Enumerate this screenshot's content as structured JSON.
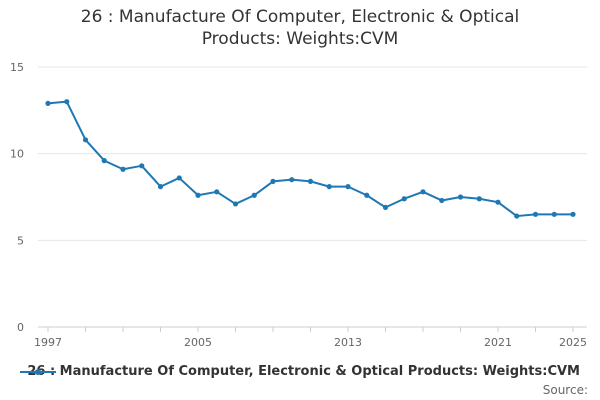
{
  "chart_data": {
    "type": "line",
    "title_lines": [
      "26 : Manufacture Of Computer, Electronic & Optical",
      "Products: Weights:CVM"
    ],
    "x": [
      1997,
      1998,
      1999,
      2000,
      2001,
      2002,
      2003,
      2004,
      2005,
      2006,
      2007,
      2008,
      2009,
      2010,
      2011,
      2012,
      2013,
      2014,
      2015,
      2016,
      2017,
      2018,
      2019,
      2020,
      2021,
      2022,
      2023,
      2024,
      2025
    ],
    "series": [
      {
        "name": "26 : Manufacture Of Computer, Electronic & Optical Products: Weights:CVM",
        "color": "#1f78b4",
        "values": [
          12.9,
          13.0,
          10.8,
          9.6,
          9.1,
          9.3,
          8.1,
          8.6,
          7.6,
          7.8,
          7.1,
          7.6,
          8.4,
          8.5,
          8.4,
          8.1,
          8.1,
          7.6,
          6.9,
          7.4,
          7.8,
          7.3,
          7.5,
          7.4,
          7.2,
          6.4,
          6.5,
          6.5,
          6.5
        ]
      }
    ],
    "x_ticks": [
      1997,
      2005,
      2013,
      2021,
      2025
    ],
    "y_ticks": [
      0,
      5,
      10,
      15
    ],
    "ylim": [
      0,
      15
    ],
    "xlim": [
      1997,
      2025
    ],
    "grid": true,
    "legend_position": "bottom",
    "source_label": "Source:"
  }
}
